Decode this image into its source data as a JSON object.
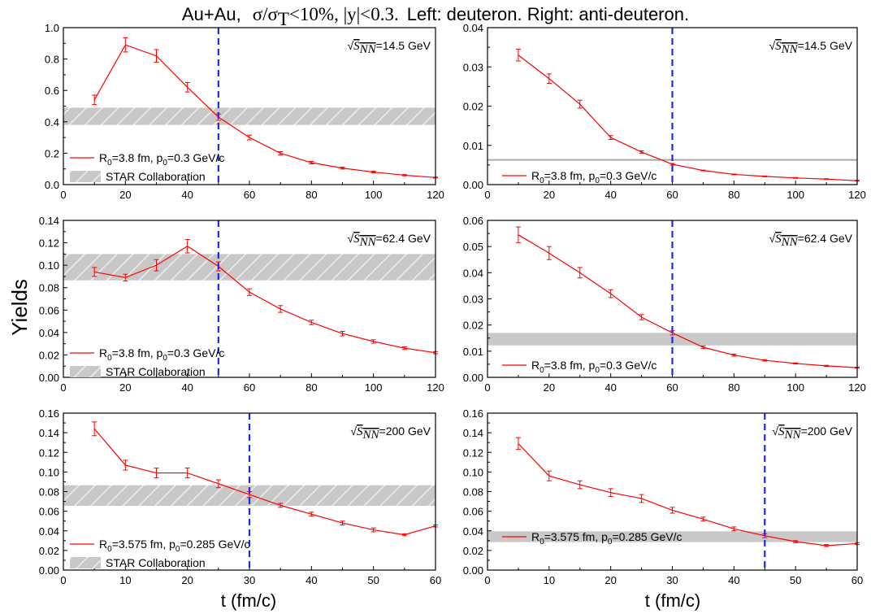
{
  "figure": {
    "title_prefix": "Au+Au,",
    "title_math": "σ/σ",
    "title_math_sub": "T",
    "title_math_rest": "<10%, |y|<0.3.",
    "title_suffix": "Left: deuteron. Right: anti-deuteron.",
    "ylabel": "Yields",
    "xlabel": "t (fm/c)"
  },
  "chart_data": [
    {
      "type": "line",
      "panel": "deuteron 14.5 GeV",
      "energy_label": "=14.5 GeV",
      "sqrt_label": "S",
      "sqrt_sub": "NN",
      "x": [
        10,
        20,
        30,
        40,
        50,
        60,
        70,
        80,
        90,
        100,
        110,
        120
      ],
      "y": [
        0.54,
        0.89,
        0.82,
        0.62,
        0.43,
        0.3,
        0.2,
        0.14,
        0.105,
        0.08,
        0.06,
        0.045
      ],
      "err": [
        0.03,
        0.045,
        0.04,
        0.03,
        0.02,
        0.015,
        0.01,
        0.008,
        0.006,
        0.005,
        0.004,
        0.003
      ],
      "xlim": [
        0,
        120
      ],
      "ylim": [
        0,
        1.0
      ],
      "xticks": [
        0,
        20,
        40,
        60,
        80,
        100,
        120
      ],
      "yticks": [
        "0.0",
        "0.2",
        "0.4",
        "0.6",
        "0.8",
        "1.0"
      ],
      "band": [
        0.38,
        0.49
      ],
      "band_style": "hatched",
      "vline": 50,
      "legend": {
        "line_label": "R",
        "line_sub1": "0",
        "line_mid": "=3.8 fm, p",
        "line_sub2": "0",
        "line_end": "=0.3 GeV/c",
        "band_label": "STAR Collaboration"
      }
    },
    {
      "type": "line",
      "panel": "anti-deuteron 14.5 GeV",
      "energy_label": "=14.5 GeV",
      "sqrt_label": "S",
      "sqrt_sub": "NN",
      "x": [
        10,
        20,
        30,
        40,
        50,
        60,
        70,
        80,
        90,
        100,
        110,
        120
      ],
      "y": [
        0.033,
        0.027,
        0.0205,
        0.012,
        0.0083,
        0.0052,
        0.0036,
        0.0026,
        0.0021,
        0.0017,
        0.0014,
        0.001
      ],
      "err": [
        0.0015,
        0.0012,
        0.001,
        0.0005,
        0.0003,
        0.0002,
        0.0001,
        0.0001,
        0.0001,
        0.0001,
        0.0001,
        0.0001
      ],
      "xlim": [
        0,
        120
      ],
      "ylim": [
        0,
        0.04
      ],
      "xticks": [
        0,
        20,
        40,
        60,
        80,
        100,
        120
      ],
      "yticks": [
        "0.00",
        "0.01",
        "0.02",
        "0.03",
        "0.04"
      ],
      "hline": 0.0063,
      "vline": 60,
      "legend": {
        "line_label": "R",
        "line_sub1": "0",
        "line_mid": "=3.8 fm, p",
        "line_sub2": "0",
        "line_end": "=0.3 GeV/c"
      }
    },
    {
      "type": "line",
      "panel": "deuteron 62.4 GeV",
      "energy_label": "=62.4 GeV",
      "sqrt_label": "S",
      "sqrt_sub": "NN",
      "x": [
        10,
        20,
        30,
        40,
        50,
        60,
        70,
        80,
        90,
        100,
        110,
        120
      ],
      "y": [
        0.094,
        0.089,
        0.1,
        0.117,
        0.099,
        0.076,
        0.061,
        0.049,
        0.039,
        0.032,
        0.026,
        0.022
      ],
      "err": [
        0.004,
        0.003,
        0.005,
        0.006,
        0.004,
        0.003,
        0.003,
        0.002,
        0.002,
        0.0015,
        0.0012,
        0.001
      ],
      "xlim": [
        0,
        120
      ],
      "ylim": [
        0,
        0.14
      ],
      "xticks": [
        0,
        20,
        40,
        60,
        80,
        100,
        120
      ],
      "yticks": [
        "0.00",
        "0.02",
        "0.04",
        "0.06",
        "0.08",
        "0.10",
        "0.12",
        "0.14"
      ],
      "band": [
        0.0865,
        0.11
      ],
      "band_style": "hatched",
      "vline": 50,
      "legend": {
        "line_label": "R",
        "line_sub1": "0",
        "line_mid": "=3.8 fm, p",
        "line_sub2": "0",
        "line_end": "=0.3 GeV/c",
        "band_label": "STAR Collaboration"
      }
    },
    {
      "type": "line",
      "panel": "anti-deuteron 62.4 GeV",
      "energy_label": "=62.4 GeV",
      "sqrt_label": "S",
      "sqrt_sub": "NN",
      "x": [
        10,
        20,
        30,
        40,
        50,
        60,
        70,
        80,
        90,
        100,
        110,
        120
      ],
      "y": [
        0.0545,
        0.0475,
        0.04,
        0.032,
        0.023,
        0.017,
        0.0115,
        0.0085,
        0.0065,
        0.0053,
        0.0044,
        0.0037
      ],
      "err": [
        0.003,
        0.0025,
        0.002,
        0.0015,
        0.001,
        0.0008,
        0.0005,
        0.0004,
        0.0003,
        0.0002,
        0.0002,
        0.0002
      ],
      "xlim": [
        0,
        120
      ],
      "ylim": [
        0,
        0.06
      ],
      "xticks": [
        0,
        20,
        40,
        60,
        80,
        100,
        120
      ],
      "yticks": [
        "0.00",
        "0.01",
        "0.02",
        "0.03",
        "0.04",
        "0.05",
        "0.06"
      ],
      "band": [
        0.0122,
        0.017
      ],
      "band_style": "solid",
      "vline": 60,
      "legend": {
        "line_label": "R",
        "line_sub1": "0",
        "line_mid": "=3.8 fm, p",
        "line_sub2": "0",
        "line_end": "=0.3 GeV/c"
      }
    },
    {
      "type": "line",
      "panel": "deuteron 200 GeV",
      "energy_label": "=200 GeV",
      "sqrt_label": "S",
      "sqrt_sub": "NN",
      "x": [
        5,
        10,
        15,
        20,
        25,
        30,
        35,
        40,
        45,
        50,
        55,
        60
      ],
      "y": [
        0.144,
        0.107,
        0.099,
        0.099,
        0.088,
        0.077,
        0.066,
        0.057,
        0.048,
        0.041,
        0.036,
        0.045
      ],
      "err": [
        0.007,
        0.005,
        0.005,
        0.005,
        0.004,
        0.003,
        0.002,
        0.002,
        0.002,
        0.002,
        0.001,
        0.001
      ],
      "xlim": [
        0,
        60
      ],
      "ylim": [
        0,
        0.16
      ],
      "xticks": [
        0,
        10,
        20,
        30,
        40,
        50,
        60
      ],
      "yticks": [
        "0.00",
        "0.02",
        "0.04",
        "0.06",
        "0.08",
        "0.10",
        "0.12",
        "0.14",
        "0.16"
      ],
      "band": [
        0.0655,
        0.0865
      ],
      "band_style": "hatched",
      "vline": 30,
      "legend": {
        "line_label": "R",
        "line_sub1": "0",
        "line_mid": "=3.575 fm, p",
        "line_sub2": "0",
        "line_end": "=0.285 GeV/c",
        "band_label": "STAR Collaboration"
      }
    },
    {
      "type": "line",
      "panel": "anti-deuteron 200 GeV",
      "energy_label": "=200 GeV",
      "sqrt_label": "S",
      "sqrt_sub": "NN",
      "x": [
        5,
        10,
        15,
        20,
        25,
        30,
        35,
        40,
        45,
        50,
        55,
        60
      ],
      "y": [
        0.129,
        0.096,
        0.087,
        0.079,
        0.073,
        0.061,
        0.052,
        0.042,
        0.035,
        0.029,
        0.025,
        0.027
      ],
      "err": [
        0.006,
        0.005,
        0.004,
        0.004,
        0.004,
        0.003,
        0.002,
        0.002,
        0.002,
        0.001,
        0.001,
        0.001
      ],
      "xlim": [
        0,
        60
      ],
      "ylim": [
        0,
        0.16
      ],
      "xticks": [
        0,
        10,
        20,
        30,
        40,
        50,
        60
      ],
      "yticks": [
        "0.00",
        "0.02",
        "0.04",
        "0.06",
        "0.08",
        "0.10",
        "0.12",
        "0.14",
        "0.16"
      ],
      "band": [
        0.0285,
        0.0395
      ],
      "band_style": "solid",
      "vline": 45,
      "legend": {
        "line_label": "R",
        "line_sub1": "0",
        "line_mid": "=3.575 fm, p",
        "line_sub2": "0",
        "line_end": "=0.285 GeV/c"
      }
    }
  ]
}
